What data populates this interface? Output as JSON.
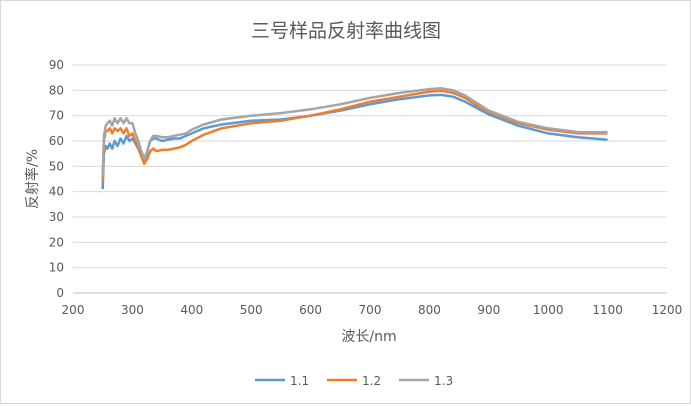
{
  "chart_data": {
    "type": "line",
    "title": "三号样品反射率曲线图",
    "xlabel": "波长/nm",
    "ylabel": "反射率/%",
    "xlim": [
      200,
      1200
    ],
    "ylim": [
      0,
      90
    ],
    "xticks": [
      "200",
      "300",
      "400",
      "500",
      "600",
      "700",
      "800",
      "900",
      "1000",
      "1100",
      "1200"
    ],
    "yticks": [
      "0",
      "10",
      "20",
      "30",
      "40",
      "50",
      "60",
      "70",
      "80",
      "90"
    ],
    "grid": "horizontal",
    "legend_position": "bottom",
    "series": [
      {
        "name": "1.1",
        "color": "#5b9bd5",
        "points": [
          [
            250,
            41
          ],
          [
            252,
            55
          ],
          [
            255,
            58
          ],
          [
            258,
            57
          ],
          [
            262,
            59
          ],
          [
            266,
            57
          ],
          [
            270,
            60
          ],
          [
            275,
            58
          ],
          [
            280,
            61
          ],
          [
            285,
            59
          ],
          [
            290,
            62
          ],
          [
            295,
            60
          ],
          [
            300,
            61
          ],
          [
            305,
            59
          ],
          [
            310,
            57
          ],
          [
            315,
            54
          ],
          [
            320,
            52
          ],
          [
            325,
            56
          ],
          [
            330,
            60
          ],
          [
            335,
            61
          ],
          [
            340,
            61
          ],
          [
            350,
            60
          ],
          [
            360,
            60.5
          ],
          [
            370,
            61
          ],
          [
            380,
            61
          ],
          [
            390,
            62
          ],
          [
            400,
            63
          ],
          [
            420,
            65
          ],
          [
            450,
            66.5
          ],
          [
            500,
            68
          ],
          [
            550,
            68.5
          ],
          [
            600,
            70
          ],
          [
            650,
            72
          ],
          [
            700,
            74.5
          ],
          [
            750,
            76.5
          ],
          [
            800,
            78
          ],
          [
            820,
            78.2
          ],
          [
            840,
            77.5
          ],
          [
            860,
            75.5
          ],
          [
            880,
            73
          ],
          [
            900,
            70.5
          ],
          [
            950,
            66
          ],
          [
            1000,
            63
          ],
          [
            1050,
            61.5
          ],
          [
            1100,
            60.5
          ]
        ]
      },
      {
        "name": "1.2",
        "color": "#ed7d31",
        "points": [
          [
            250,
            44
          ],
          [
            252,
            60
          ],
          [
            255,
            64
          ],
          [
            258,
            64
          ],
          [
            262,
            65
          ],
          [
            266,
            63
          ],
          [
            270,
            65
          ],
          [
            275,
            64
          ],
          [
            280,
            65
          ],
          [
            285,
            63
          ],
          [
            290,
            65
          ],
          [
            295,
            62
          ],
          [
            300,
            63
          ],
          [
            305,
            60
          ],
          [
            310,
            58
          ],
          [
            315,
            54
          ],
          [
            320,
            51
          ],
          [
            325,
            53
          ],
          [
            330,
            56
          ],
          [
            335,
            57
          ],
          [
            340,
            56
          ],
          [
            350,
            56.5
          ],
          [
            360,
            56.5
          ],
          [
            370,
            57
          ],
          [
            380,
            57.5
          ],
          [
            390,
            58.5
          ],
          [
            400,
            60
          ],
          [
            420,
            62.5
          ],
          [
            450,
            65
          ],
          [
            500,
            67
          ],
          [
            550,
            68
          ],
          [
            600,
            70
          ],
          [
            650,
            72.5
          ],
          [
            700,
            75.5
          ],
          [
            750,
            77.5
          ],
          [
            800,
            79.5
          ],
          [
            820,
            79.8
          ],
          [
            840,
            79
          ],
          [
            860,
            77
          ],
          [
            880,
            74
          ],
          [
            900,
            71.5
          ],
          [
            950,
            67
          ],
          [
            1000,
            64.5
          ],
          [
            1050,
            63
          ],
          [
            1100,
            63
          ]
        ]
      },
      {
        "name": "1.3",
        "color": "#a5a5a5",
        "points": [
          [
            250,
            46
          ],
          [
            252,
            62
          ],
          [
            255,
            66
          ],
          [
            258,
            67
          ],
          [
            262,
            68
          ],
          [
            266,
            66
          ],
          [
            270,
            69
          ],
          [
            275,
            67
          ],
          [
            280,
            69
          ],
          [
            285,
            67
          ],
          [
            290,
            69
          ],
          [
            295,
            67
          ],
          [
            300,
            67
          ],
          [
            305,
            63
          ],
          [
            310,
            60
          ],
          [
            315,
            56
          ],
          [
            320,
            53
          ],
          [
            325,
            56
          ],
          [
            330,
            60
          ],
          [
            335,
            62
          ],
          [
            340,
            62
          ],
          [
            350,
            61.5
          ],
          [
            360,
            61.5
          ],
          [
            370,
            62
          ],
          [
            380,
            62.5
          ],
          [
            390,
            63
          ],
          [
            400,
            64.5
          ],
          [
            420,
            66.5
          ],
          [
            450,
            68.5
          ],
          [
            500,
            70
          ],
          [
            550,
            71
          ],
          [
            600,
            72.5
          ],
          [
            650,
            74.5
          ],
          [
            700,
            77
          ],
          [
            750,
            79
          ],
          [
            800,
            80.5
          ],
          [
            820,
            80.8
          ],
          [
            840,
            80
          ],
          [
            860,
            78
          ],
          [
            880,
            75
          ],
          [
            900,
            72
          ],
          [
            950,
            67.5
          ],
          [
            1000,
            65
          ],
          [
            1050,
            63.5
          ],
          [
            1100,
            63.5
          ]
        ]
      }
    ]
  }
}
